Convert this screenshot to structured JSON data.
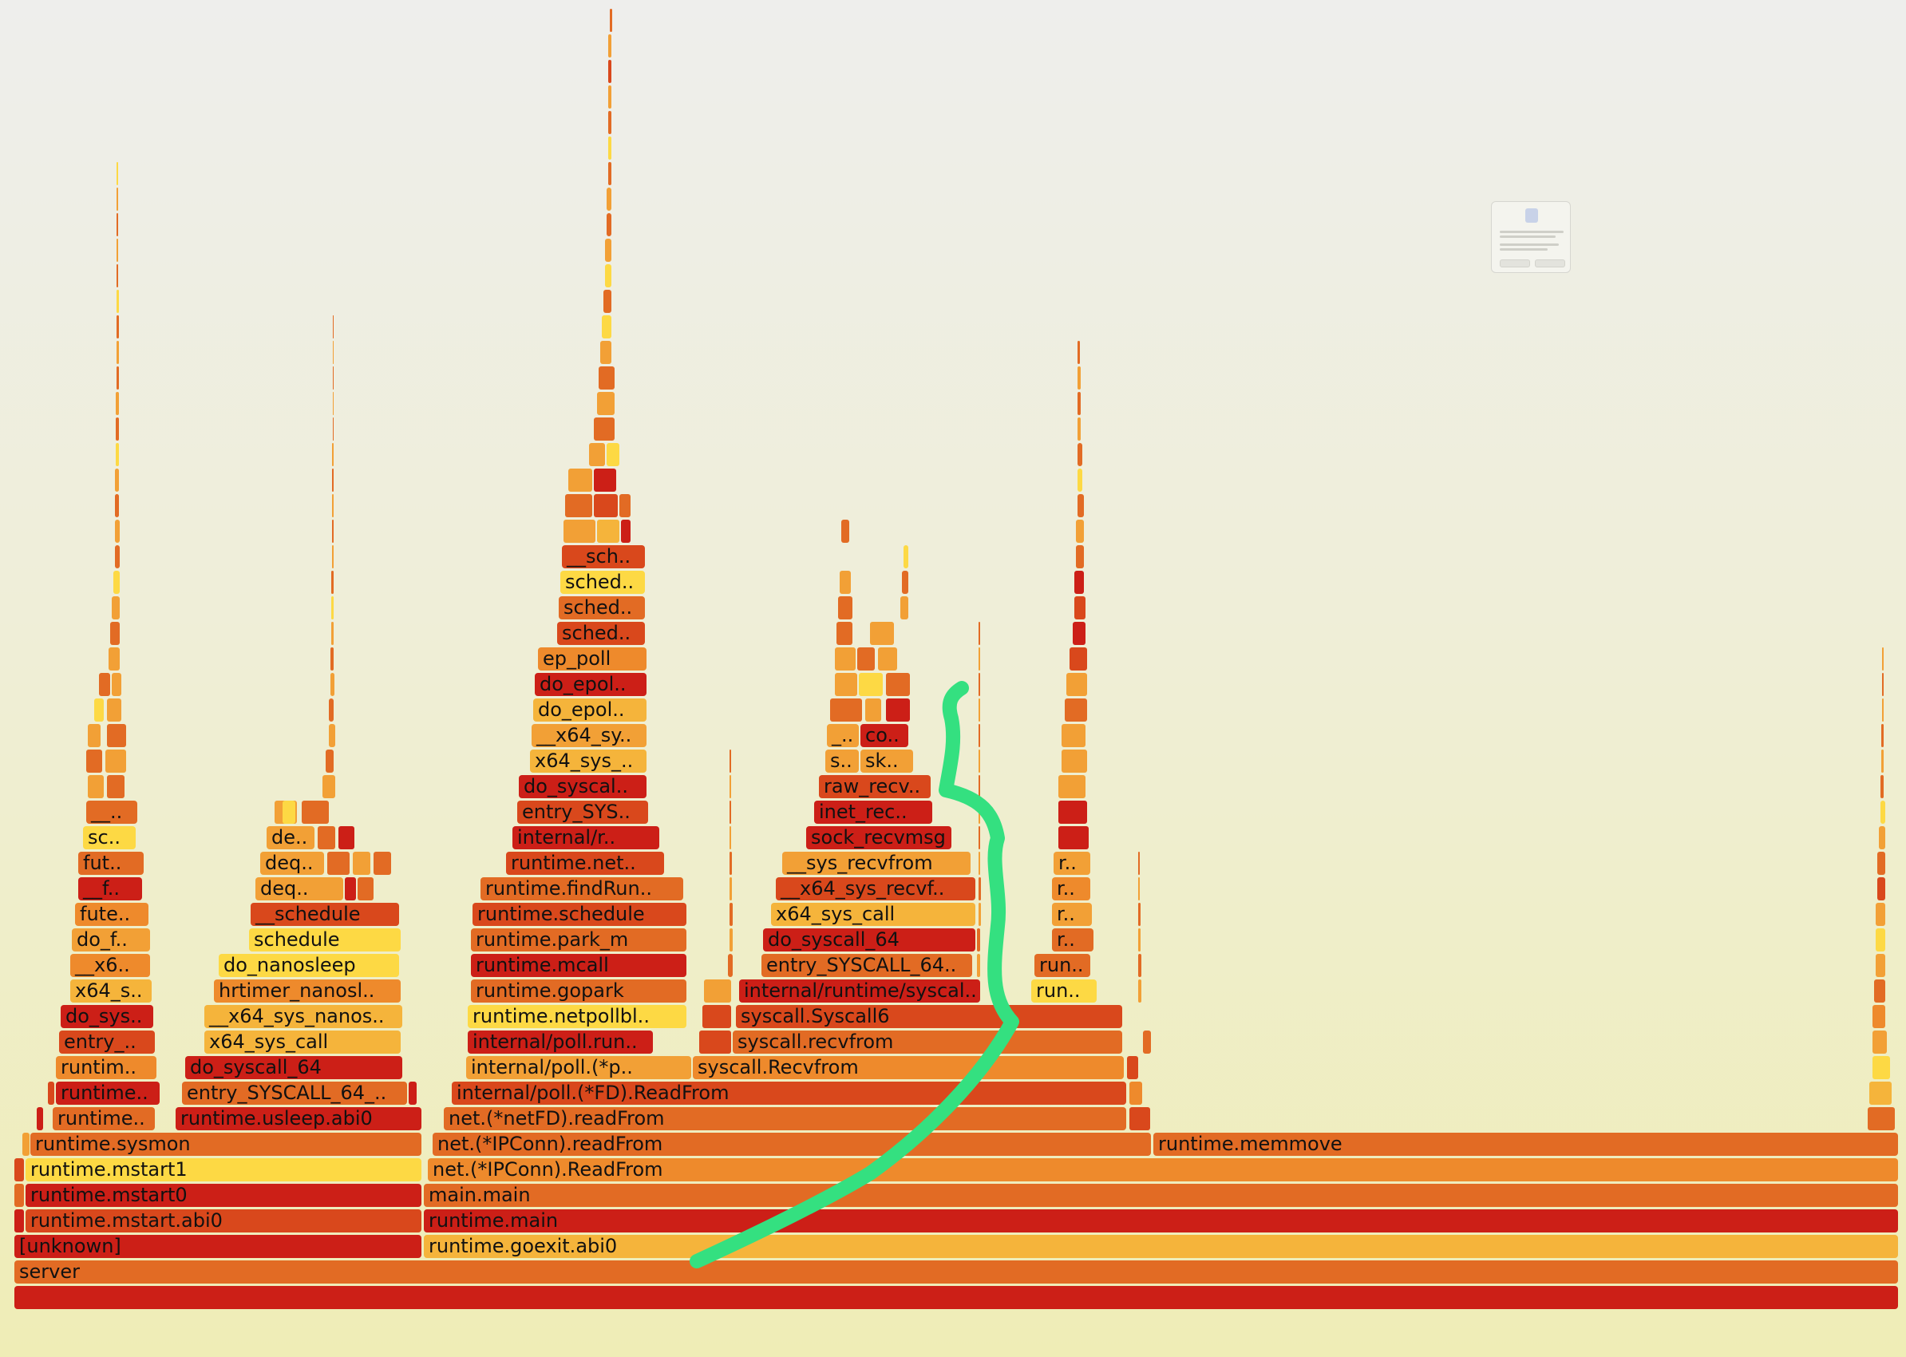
{
  "flamegraph": {
    "root_label": "",
    "frames": {
      "server": "server",
      "unknown": "[unknown]",
      "runtime_goexit_abi0": "runtime.goexit.abi0",
      "runtime_mstart_abi0": "runtime.mstart.abi0",
      "runtime_main": "runtime.main",
      "runtime_mstart0": "runtime.mstart0",
      "main_main": "main.main",
      "runtime_mstart1": "runtime.mstart1",
      "net_ipconn_readfrom_upper": "net.(*IPConn).ReadFrom",
      "runtime_sysmon": "runtime.sysmon",
      "net_ipconn_readfrom": "net.(*IPConn).readFrom",
      "runtime_memmove": "runtime.memmove",
      "runtime_sysmon_child": "runtime..",
      "runtime_usleep_abi0": "runtime.usleep.abi0",
      "net_netfd_readfrom": "net.(*netFD).readFrom",
      "runtime_l3": "runtime..",
      "entry_syscall_64_a": "entry_SYSCALL_64_..",
      "internal_poll_fd_readfrom": "internal/poll.(*FD).ReadFrom",
      "runtim_l4": "runtim..",
      "do_syscall_64_a": "do_syscall_64",
      "internal_poll_p": "internal/poll.(*p..",
      "syscall_recvfrom_upper": "syscall.Recvfrom",
      "entry_l5": "entry_..",
      "x64_sys_call_a": "x64_sys_call",
      "internal_poll_run": "internal/poll.run..",
      "syscall_recvfrom": "syscall.recvfrom",
      "do_sys_l6": "do_sys..",
      "x64_sys_nanos": "__x64_sys_nanos..",
      "runtime_netpollbl": "runtime.netpollbl..",
      "syscall_syscall6": "syscall.Syscall6",
      "x64_s_l7": "x64_s..",
      "hrtimer_nanosl": "hrtimer_nanosl..",
      "runtime_gopark": "runtime.gopark",
      "internal_runtime_syscal": "internal/runtime/syscal..",
      "run_l7": "run..",
      "x6_l8": "__x6..",
      "do_nanosleep": "do_nanosleep",
      "runtime_mcall": "runtime.mcall",
      "entry_syscall_64_b": "entry_SYSCALL_64..",
      "run_l8": "run..",
      "do_f": "do_f..",
      "schedule": "schedule",
      "runtime_park_m": "runtime.park_m",
      "do_syscall_64_b": "do_syscall_64",
      "r_l9": "r..",
      "fute": "fute..",
      "x_schedule": "__schedule",
      "runtime_schedule": "runtime.schedule",
      "x64_sys_call_b": "x64_sys_call",
      "r_l10": "r..",
      "f_l11": "__f..",
      "deq": "deq..",
      "runtime_findrun": "runtime.findRun..",
      "x64_sys_recvf": "__x64_sys_recvf..",
      "r_l11": "r..",
      "fut_l12": "fut..",
      "deq2": "deq..",
      "runtime_net": "runtime.net..",
      "sys_recvfrom": "__sys_recvfrom",
      "r_l12": "r..",
      "sc": "sc..",
      "de": "de..",
      "internal_r": "internal/r..",
      "sock_recvmsg": "sock_recvmsg",
      "x_l14": "__..",
      "entry_sys": "entry_SYS..",
      "inet_rec": "inet_rec..",
      "do_syscal": "do_syscal..",
      "raw_recv": "raw_recv..",
      "x64_sys_": "x64_sys_..",
      "s_l16": "s..",
      "sk": "sk..",
      "x64_sy": "__x64_sy..",
      "x_l17": "_..",
      "co": "co..",
      "do_epol_a": "do_epol..",
      "do_epol_b": "do_epol..",
      "ep_poll": "ep_poll",
      "sched_a": "sched..",
      "sched_b": "sched..",
      "sched_c": "sched..",
      "sch": "__sch.."
    }
  },
  "colors": {
    "red": "#cc1f17",
    "red_orange": "#d9481c",
    "orange": "#e26b24",
    "amber": "#ee8a2c",
    "light_orange": "#f2a036",
    "gold": "#f5b43b",
    "yellow": "#fdd944",
    "annotation_green": "#34e080"
  },
  "annotation": {
    "type": "freehand-stroke",
    "color": "#34e080"
  },
  "notification": {
    "icon": "app-icon"
  }
}
